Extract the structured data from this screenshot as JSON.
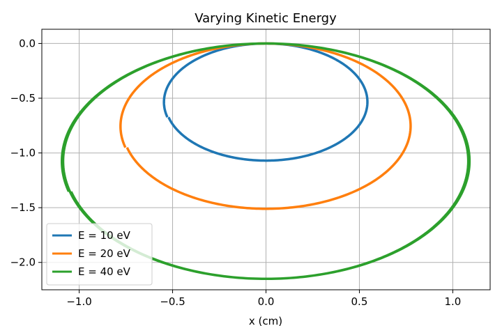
{
  "chart_data": {
    "type": "line",
    "title": "Varying Kinetic Energy",
    "xlabel": "x (cm)",
    "ylabel": "",
    "xlim": [
      -1.2,
      1.2
    ],
    "ylim": [
      -2.25,
      0.13
    ],
    "xticks": [
      -1.0,
      -0.5,
      0.0,
      0.5,
      1.0
    ],
    "xtick_labels": [
      "−1.0",
      "−0.5",
      "0.0",
      "0.5",
      "1.0"
    ],
    "yticks": [
      0.0,
      -0.5,
      -1.0,
      -1.5,
      -2.0
    ],
    "ytick_labels": [
      "0.0",
      "−0.5",
      "−1.0",
      "−1.5",
      "−2.0"
    ],
    "grid": true,
    "legend_position": "lower-left",
    "series": [
      {
        "name": "E = 10 eV",
        "color": "#1f77b4",
        "rx": 0.54,
        "ry": 0.535,
        "cy": -0.535,
        "turns": 1,
        "start_angle_deg": 195
      },
      {
        "name": "E = 20 eV",
        "color": "#ff7f0e",
        "rx": 0.77,
        "ry": 0.755,
        "cy": -0.755,
        "turns": 1,
        "start_angle_deg": 195
      },
      {
        "name": "E = 40 eV",
        "color": "#2ca02c",
        "rx": 1.08,
        "ry": 1.075,
        "cy": -1.075,
        "turns": 2,
        "start_angle_deg": 195
      }
    ]
  }
}
